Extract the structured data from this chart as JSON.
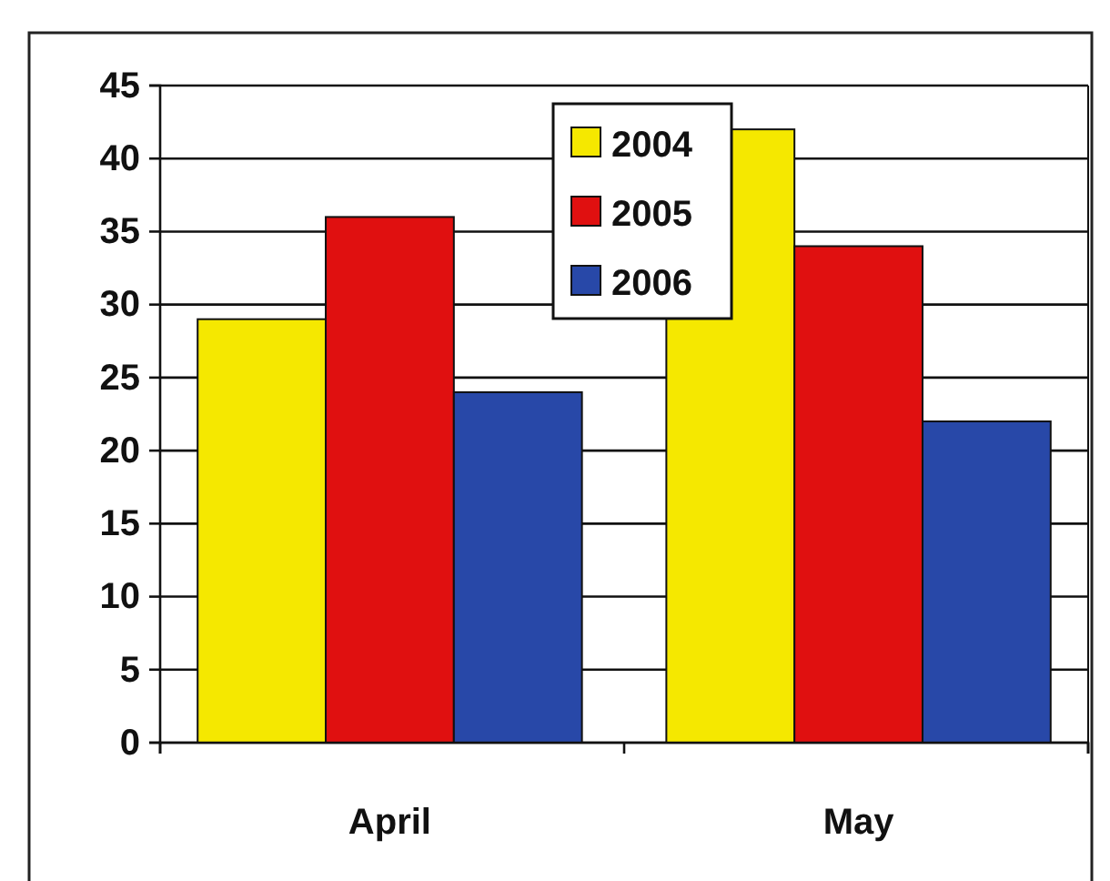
{
  "chart_data": {
    "type": "bar",
    "categories": [
      "April",
      "May"
    ],
    "series": [
      {
        "name": "2004",
        "color": "#f5e800",
        "values": [
          29,
          42
        ]
      },
      {
        "name": "2005",
        "color": "#e01010",
        "values": [
          36,
          34
        ]
      },
      {
        "name": "2006",
        "color": "#2848a8",
        "values": [
          24,
          22
        ]
      }
    ],
    "ylim": [
      0,
      45
    ],
    "yticks": [
      0,
      5,
      10,
      15,
      20,
      25,
      30,
      35,
      40,
      45
    ],
    "grid": "y",
    "legend": "top"
  }
}
